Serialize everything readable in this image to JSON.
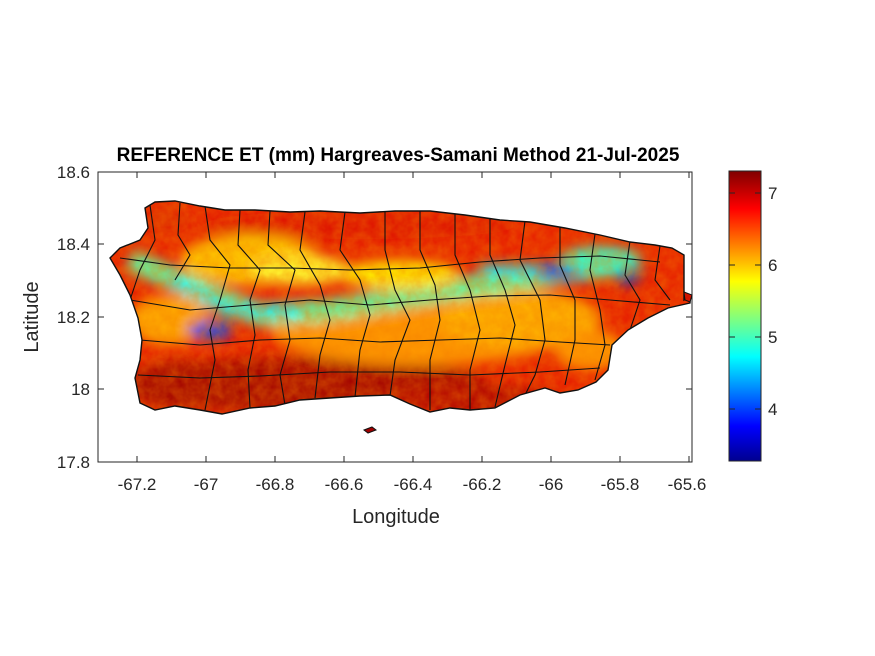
{
  "title": "REFERENCE ET (mm) Hargreaves-Samani Method  21-Jul-2025",
  "chart_data": {
    "type": "heatmap",
    "title": "REFERENCE ET (mm) Hargreaves-Samani Method  21-Jul-2025",
    "xlabel": "Longitude",
    "ylabel": "Latitude",
    "xlim": [
      -67.3,
      -65.58
    ],
    "ylim": [
      17.8,
      18.6
    ],
    "xticks": [
      "-67.2",
      "-67",
      "-66.8",
      "-66.6",
      "-66.4",
      "-66.2",
      "-66",
      "-65.8",
      "-65.6"
    ],
    "yticks": [
      "18.6",
      "18.4",
      "18.2",
      "18",
      "17.8"
    ],
    "colorbar": {
      "colormap": "jet",
      "range": [
        3.3,
        7.3
      ],
      "ticks": [
        "7",
        "6",
        "5",
        "4"
      ]
    },
    "grid": false,
    "region": "Puerto Rico (municipality boundaries)"
  }
}
